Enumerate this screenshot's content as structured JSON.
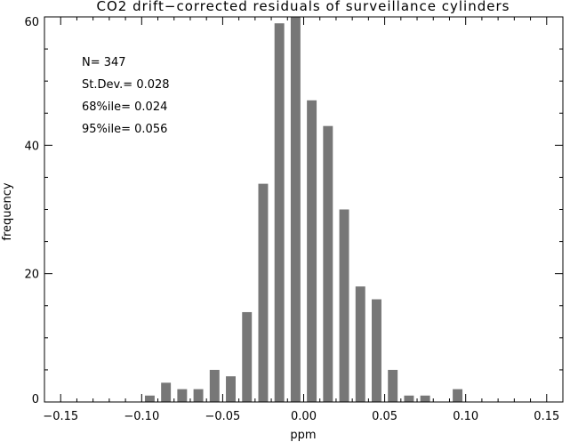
{
  "chart_data": {
    "type": "bar",
    "title": "CO2 drift−corrected residuals of surveillance cylinders",
    "xlabel": "ppm",
    "ylabel": "frequency",
    "xlim": [
      -0.16,
      0.16
    ],
    "ylim": [
      0,
      60
    ],
    "xticks": [
      -0.15,
      -0.1,
      -0.05,
      0.0,
      0.05,
      0.1,
      0.15
    ],
    "xtick_labels": [
      "−0.15",
      "−0.10",
      "−0.05",
      "0.00",
      "0.05",
      "0.10",
      "0.15"
    ],
    "yticks": [
      0,
      20,
      40,
      60
    ],
    "ytick_labels": [
      "0",
      "20",
      "40",
      "60"
    ],
    "bar_width": 0.006,
    "bar_color": "#777777",
    "x": [
      -0.095,
      -0.085,
      -0.075,
      -0.065,
      -0.055,
      -0.045,
      -0.035,
      -0.025,
      -0.015,
      -0.005,
      0.005,
      0.015,
      0.025,
      0.035,
      0.045,
      0.055,
      0.065,
      0.075,
      0.085,
      0.095
    ],
    "values": [
      1,
      3,
      2,
      2,
      5,
      4,
      14,
      34,
      59,
      60,
      47,
      43,
      30,
      18,
      16,
      5,
      1,
      1,
      0,
      2
    ],
    "annotations": [
      "N= 347",
      "St.Dev.= 0.028",
      "68%ile= 0.024",
      "95%ile= 0.056"
    ],
    "grid": false
  }
}
